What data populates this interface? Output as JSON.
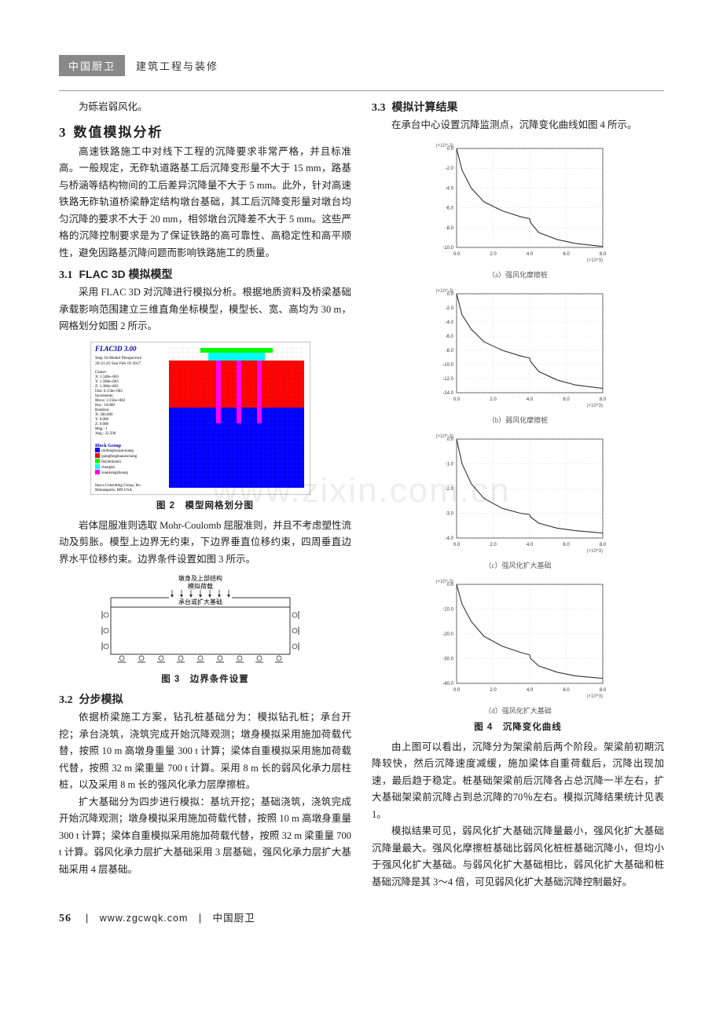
{
  "header": {
    "brand": "中国厨卫",
    "category": "建筑工程与装修"
  },
  "watermark": "www.zixin.com.cn",
  "footer": {
    "page": "56",
    "site": "www.zgcwqk.com",
    "brand": "中国厨卫"
  },
  "left": {
    "p_intro": "为砾岩弱风化。",
    "sec3_num": "3",
    "sec3_title": "数值模拟分析",
    "p_sec3": "高速铁路施工中对线下工程的沉降要求非常严格，并且标准高。一般规定，无砟轨道路基工后沉降变形量不大于 15 mm，路基与桥涵等结构物间的工后差异沉降量不大于 5 mm。此外，针对高速铁路无砟轨道桥梁静定结构墩台基础，其工后沉降变形量对墩台均匀沉降的要求不大于 20 mm，相邻墩台沉降差不大于 5 mm。这些严格的沉降控制要求是为了保证铁路的高可靠性、高稳定性和高平顺性，避免因路基沉降问题而影响铁路施工的质量。",
    "sub31_num": "3.1",
    "sub31_title": "FLAC 3D 模拟模型",
    "p_sub31": "采用 FLAC 3D 对沉降进行模拟分析。根据地质资料及桥梁基础承载影响范围建立三维直角坐标模型，模型长、宽、高均为 30 m，网格划分如图 2 所示。",
    "fig2_caption": "图 2　模型网格划分图",
    "p_after_fig2": "岩体屈服准则选取 Mohr-Coulomb 屈服准则，并且不考虑塑性流动及剪胀。模型上边界无约束，下边界垂直位移约束，四周垂直边界水平位移约束。边界条件设置如图 3 所示。",
    "fig3_caption": "图 3　边界条件设置",
    "sub32_num": "3.2",
    "sub32_title": "分步模拟",
    "p_sub32a": "依据桥梁施工方案，钻孔桩基础分为：模拟钻孔桩；承台开挖；承台浇筑，浇筑完成开始沉降观测；墩身模拟采用施加荷载代替，按照 10 m 高墩身重量 300 t 计算；梁体自重模拟采用施加荷载代替，按照 32 m 梁重量 700 t 计算。采用 8 m 长的弱风化承力层柱桩，以及采用 8 m 长的强风化承力层摩擦桩。",
    "p_sub32b": "扩大基础分为四步进行模拟：基坑开挖；基础浇筑，浇筑完成开始沉降观测；墩身模拟采用施加荷载代替，按照 10 m 高墩身重量 300 t 计算；梁体自重模拟采用施加荷载代替，按照 32 m 梁重量 700 t 计算。弱风化承力层扩大基础采用 3 层基础，强风化承力层扩大基础采用 4 层基础。"
  },
  "right": {
    "sub33_num": "3.3",
    "sub33_title": "模拟计算结果",
    "p_sub33a": "在承台中心设置沉降监测点，沉降变化曲线如图 4 所示。",
    "fig4_caption": "图 4　沉降变化曲线",
    "p_sub33b": "由上图可以看出，沉降分为架梁前后两个阶段。架梁前初期沉降较快，然后沉降速度减缓，施加梁体自重荷载后，沉降出现加速，最后趋于稳定。桩基础架梁前后沉降各占总沉降一半左右，扩大基础架梁前沉降占到总沉降的70％左右。模拟沉降结果统计见表 1。",
    "p_sub33c": "模拟结果可见，弱风化扩大基础沉降量最小，强风化扩大基础沉降量最大。强风化摩擦桩基础比弱风化桩桩基础沉降小，但均小于强风化扩大基础。与弱风化扩大基础相比，弱风化扩大基础和桩基础沉降是其 3～4 倍，可见弱风化扩大基础沉降控制最好。",
    "sub_captions": {
      "a": "（a）强风化摩擦桩",
      "b": "（b）弱风化摩擦桩",
      "c": "（c）强风化扩大基础",
      "d": "（d）强风化扩大基础"
    }
  },
  "fig2": {
    "colors": {
      "bg_panel": "#ffffff",
      "top_layer": "#00ff00",
      "cap_layer": "#00ffff",
      "mid_layer": "#ff0000",
      "bottom_layer": "#0000ff",
      "pile": "#ff00ff",
      "grid": "#808080",
      "text": "#000000",
      "title": "#0000aa"
    },
    "title": "FLAC3D 3.00",
    "step_line": "Step 16  Model Perspective",
    "time_line": "20:31:45 Sun Feb 19 2017",
    "info": [
      "Center:",
      "X: 1.500e+003",
      "Y: 1.500e+003",
      "Z: 1.300e+003",
      "Dist: 8.156e+003",
      "Increments:",
      "Move: 3.156e+002",
      "Rot.: 10.000",
      "Rotation:",
      "X: 360.000",
      "Y: 0.000",
      "Z: 0.000",
      "Mag.: 1",
      "Ang.: 22.500"
    ],
    "group_title": "Block Group",
    "groups": [
      "ruofenghuazaoxiang",
      "qiangfenghuazaoxiang",
      "fenzhimantu",
      "chengtai",
      "zuankongzhuang"
    ],
    "credit": "Itasca Consulting Group, Inc.\nMinneapolis, MN  USA"
  },
  "fig3": {
    "labels": {
      "top1": "墩身及上部结构",
      "top2": "模拟荷载",
      "top3": "承台或扩大基础"
    },
    "line_color": "#333333",
    "bg": "#ffffff"
  },
  "charts": {
    "grid_color": "#bbbbbb",
    "axis_color": "#333333",
    "line_color": "#333333",
    "bg": "#ffffff",
    "ylab_font": 7,
    "tick_font": 6,
    "xlim": [
      0,
      8
    ],
    "xticks": [
      0,
      2,
      4,
      6,
      8
    ],
    "xtick_labels": [
      "0.0",
      "2.0",
      "4.0",
      "6.0",
      "8.0"
    ],
    "xunit": "(×10^3)",
    "series": {
      "a": {
        "yunit": "(×10^-3)",
        "ylim": [
          -10,
          0
        ],
        "yticks": [
          0,
          -2,
          -4,
          -6,
          -8,
          -10
        ],
        "ytick_labels": [
          "0.0",
          "-2.0",
          "-4.0",
          "-6.0",
          "-8.0",
          "-10.0"
        ],
        "points": [
          [
            0,
            0
          ],
          [
            0.3,
            -2.2
          ],
          [
            0.8,
            -4.0
          ],
          [
            1.5,
            -5.4
          ],
          [
            2.5,
            -6.3
          ],
          [
            3.5,
            -6.9
          ],
          [
            4.0,
            -7.1
          ],
          [
            4.05,
            -7.5
          ],
          [
            4.5,
            -8.5
          ],
          [
            5.5,
            -9.2
          ],
          [
            6.5,
            -9.6
          ],
          [
            8.0,
            -9.9
          ]
        ]
      },
      "b": {
        "yunit": "(×10^-3)",
        "ylim": [
          -14,
          0
        ],
        "yticks": [
          0,
          -2,
          -4,
          -6,
          -8,
          -10,
          -12,
          -14
        ],
        "ytick_labels": [
          "0.0",
          "-2.0",
          "-4.0",
          "-6.0",
          "-8.0",
          "-10.0",
          "-12.0",
          "-14.0"
        ],
        "points": [
          [
            0,
            0
          ],
          [
            0.3,
            -3.0
          ],
          [
            0.8,
            -5.0
          ],
          [
            1.5,
            -6.8
          ],
          [
            2.5,
            -8.0
          ],
          [
            3.5,
            -8.8
          ],
          [
            4.0,
            -9.1
          ],
          [
            4.05,
            -9.6
          ],
          [
            4.5,
            -11.0
          ],
          [
            5.5,
            -12.2
          ],
          [
            6.5,
            -12.9
          ],
          [
            8.0,
            -13.4
          ]
        ]
      },
      "c": {
        "yunit": "(×10^-3)",
        "ylim": [
          -4,
          0
        ],
        "yticks": [
          0,
          -1,
          -2,
          -3,
          -4
        ],
        "ytick_labels": [
          "0.0",
          "-1.0",
          "-2.0",
          "-3.0",
          "-4.0"
        ],
        "points": [
          [
            0,
            0
          ],
          [
            0.3,
            -1.0
          ],
          [
            0.8,
            -1.8
          ],
          [
            1.5,
            -2.4
          ],
          [
            2.5,
            -2.8
          ],
          [
            3.5,
            -3.0
          ],
          [
            4.0,
            -3.05
          ],
          [
            4.05,
            -3.15
          ],
          [
            4.5,
            -3.4
          ],
          [
            5.5,
            -3.6
          ],
          [
            6.5,
            -3.7
          ],
          [
            8.0,
            -3.8
          ]
        ]
      },
      "d": {
        "yunit": "(×10^-3)",
        "ylim": [
          -40,
          0
        ],
        "yticks": [
          0,
          -10,
          -20,
          -30,
          -40
        ],
        "ytick_labels": [
          "0.0",
          "-10.0",
          "-20.0",
          "-30.0",
          "-40.0"
        ],
        "points": [
          [
            0,
            0
          ],
          [
            0.3,
            -8
          ],
          [
            0.8,
            -15
          ],
          [
            1.5,
            -21
          ],
          [
            2.5,
            -25
          ],
          [
            3.5,
            -27.5
          ],
          [
            4.0,
            -28.5
          ],
          [
            4.05,
            -30
          ],
          [
            4.5,
            -33
          ],
          [
            5.5,
            -35.5
          ],
          [
            6.5,
            -37
          ],
          [
            8.0,
            -38
          ]
        ]
      }
    }
  }
}
